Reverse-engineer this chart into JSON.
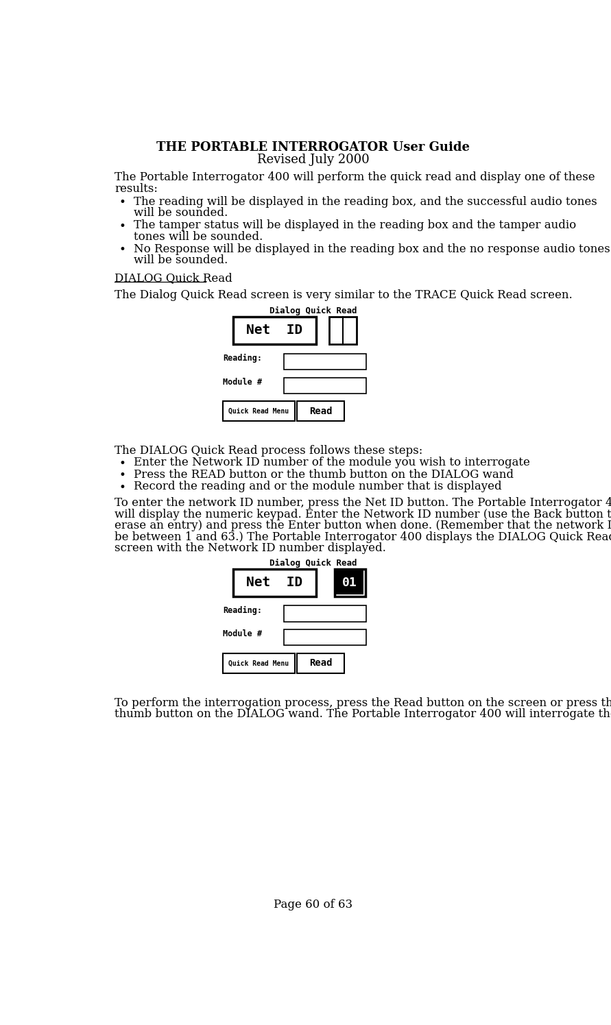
{
  "title_line1": "THE PORTABLE INTERROGATOR User Guide",
  "title_line2": "Revised July 2000",
  "page_footer": "Page 60 of 63",
  "body_text": "The Portable Interrogator 400 will perform the quick read and display one of these results:",
  "bullet_items": [
    "The reading will be displayed in the reading box, and the successful audio tones will be sounded.",
    "The tamper status will be displayed in the reading box and the tamper audio tones will be sounded.",
    "No Response will be displayed in the reading box and the no response audio tones will be sounded."
  ],
  "section_header": "DIALOG Quick Read",
  "section_intro": "The Dialog Quick Read screen is very similar to the TRACE Quick Read screen.",
  "dialog_steps_intro": "The DIALOG Quick Read process follows these steps:",
  "dialog_steps": [
    "Enter the Network ID number of the module you wish to interrogate",
    "Press the READ button or the thumb button on the DIALOG wand",
    "Record the reading and or the module number that is displayed"
  ],
  "para1": "To enter the network ID number, press the Net ID button.  The Portable Interrogator 400 will display the numeric keypad.  Enter the Network ID number (use the Back button to erase an entry) and press the Enter button when done.  (Remember that the network ID must be between 1 and 63.)  The Portable Interrogator 400 displays the DIALOG Quick Read screen with the Network ID number displayed.",
  "para2": "To perform the interrogation process, press the Read button on the screen or press the thumb button on the DIALOG wand.  The Portable Interrogator 400 will interrogate the",
  "bg_color": "#ffffff",
  "text_color": "#000000"
}
